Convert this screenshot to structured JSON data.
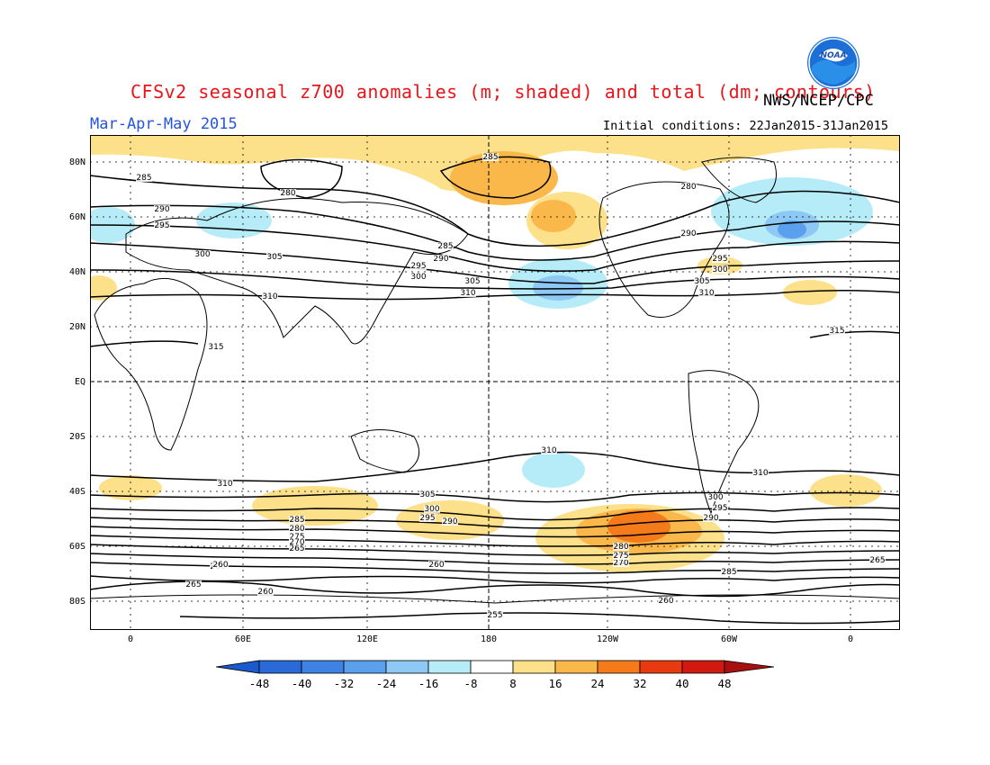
{
  "header": {
    "title": "CFSv2 seasonal z700 anomalies (m; shaded) and total (dm; contours)",
    "agency": "NWS/NCEP/CPC",
    "period": "Mar-Apr-May 2015",
    "initial_conditions": "Initial conditions: 22Jan2015-31Jan2015",
    "logo_text": "NOAA"
  },
  "colors": {
    "title": "#e8151b",
    "period": "#2554e0",
    "positive": [
      "#fde08a",
      "#fbb84a",
      "#f47a1a",
      "#e83a10",
      "#c01010"
    ],
    "negative": [
      "#b6ecf7",
      "#8ec8f5",
      "#5aa0ec",
      "#3176dc",
      "#1b5acc"
    ]
  },
  "map": {
    "lat_labels": [
      "80N",
      "60N",
      "40N",
      "20N",
      "EQ",
      "20S",
      "40S",
      "60S",
      "80S"
    ],
    "lon_labels": [
      "0",
      "60E",
      "120E",
      "180",
      "120W",
      "60W",
      "0"
    ]
  },
  "contour_labels": [
    "285",
    "280",
    "290",
    "295",
    "300",
    "305",
    "310",
    "285",
    "290",
    "295",
    "300",
    "305",
    "310",
    "285",
    "280",
    "290",
    "295",
    "300",
    "305",
    "310",
    "315",
    "315",
    "310",
    "310",
    "305",
    "300",
    "295",
    "290",
    "285",
    "280",
    "275",
    "270",
    "265",
    "260",
    "255",
    "260",
    "265",
    "260",
    "260",
    "260",
    "265",
    "310",
    "300",
    "295",
    "290",
    "285",
    "270",
    "275",
    "280"
  ],
  "colorbar": {
    "labels": [
      "-48",
      "-40",
      "-32",
      "-24",
      "-16",
      "-8",
      "8",
      "16",
      "24",
      "32",
      "40",
      "48"
    ]
  }
}
